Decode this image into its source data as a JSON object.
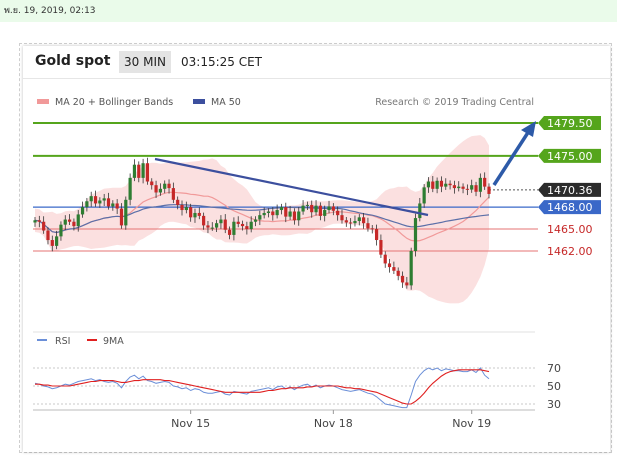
{
  "page": {
    "datetime": "พ.ย. 19, 2019, 02:13"
  },
  "header": {
    "title": "Gold spot",
    "timeframe": "30 MIN",
    "time": "03:15:25 CET"
  },
  "legend": {
    "bollinger": "MA 20 + Bollinger Bands",
    "ma50": "MA 50",
    "credit": "Research © 2019 Trading Central"
  },
  "rsi_legend": {
    "rsi": "RSI",
    "ma": "9MA"
  },
  "colors": {
    "candle_up": "#2e7d32",
    "candle_down": "#c62828",
    "band_fill": "#f9d3d3",
    "ma20": "#f19999",
    "ma50": "#5b6fa8",
    "resistance": "#55a51c",
    "support": "#e57373",
    "pivot": "#3a68c8",
    "trend": "#3c4f9e",
    "arrow": "#2d5aa8",
    "rsi": "#6b8fd8",
    "rsi_ma": "#e02020"
  },
  "chart_data": [
    {
      "type": "candlestick",
      "title": "Gold spot",
      "x_ticks": [
        "Nov 15",
        "Nov 18",
        "Nov 19"
      ],
      "price_levels": [
        {
          "label": "1479.50",
          "value": 1479.5,
          "kind": "resistance"
        },
        {
          "label": "1475.00",
          "value": 1475.0,
          "kind": "resistance"
        },
        {
          "label": "1470.36",
          "value": 1470.36,
          "kind": "current"
        },
        {
          "label": "1468.00",
          "value": 1468.0,
          "kind": "pivot"
        },
        {
          "label": "1465.00",
          "value": 1465.0,
          "kind": "support"
        },
        {
          "label": "1462.00",
          "value": 1462.0,
          "kind": "support"
        }
      ],
      "close": [
        1466.2,
        1466.0,
        1464.8,
        1463.5,
        1462.7,
        1464.0,
        1465.6,
        1466.3,
        1466.0,
        1465.4,
        1467.0,
        1468.0,
        1468.8,
        1469.5,
        1468.5,
        1468.9,
        1469.2,
        1468.1,
        1468.5,
        1467.8,
        1465.5,
        1469.0,
        1472.0,
        1473.8,
        1472.0,
        1474.0,
        1471.5,
        1471.0,
        1470.0,
        1470.5,
        1471.2,
        1470.6,
        1469.0,
        1468.3,
        1467.6,
        1468.0,
        1466.6,
        1467.2,
        1466.8,
        1465.5,
        1465.2,
        1465.2,
        1465.8,
        1466.3,
        1464.9,
        1464.2,
        1466.0,
        1465.7,
        1465.4,
        1465.0,
        1466.0,
        1466.3,
        1466.9,
        1467.2,
        1467.4,
        1466.9,
        1467.6,
        1468.0,
        1466.7,
        1467.4,
        1466.2,
        1467.4,
        1468.2,
        1468.3,
        1467.3,
        1468.2,
        1466.8,
        1467.6,
        1468.1,
        1467.5,
        1466.9,
        1466.2,
        1465.9,
        1465.8,
        1466.1,
        1466.6,
        1465.8,
        1465.1,
        1465.0,
        1463.5,
        1461.5,
        1460.3,
        1459.8,
        1459.3,
        1458.6,
        1457.7,
        1457.3,
        1462.0,
        1466.5,
        1468.5,
        1470.7,
        1471.5,
        1470.5,
        1471.6,
        1470.8,
        1471.2,
        1471.0,
        1470.6,
        1470.8,
        1470.5,
        1470.4,
        1471.0,
        1470.1,
        1472.0,
        1470.8,
        1469.8
      ],
      "price_range": [
        1455.2,
        1482.4
      ],
      "annotations": {
        "trendline": "descending resistance line",
        "arrow": "projection toward 1479.50"
      }
    },
    {
      "type": "line",
      "title": "RSI",
      "series": [
        {
          "name": "RSI"
        },
        {
          "name": "9MA"
        }
      ],
      "y_ticks": [
        70,
        50,
        30
      ],
      "ylim": [
        20,
        80
      ],
      "rsi": [
        53,
        52,
        50,
        49,
        47,
        48,
        50,
        52,
        51,
        53,
        55,
        56,
        57,
        58,
        56,
        57,
        55,
        54,
        55,
        53,
        48,
        55,
        60,
        62,
        58,
        61,
        56,
        55,
        53,
        54,
        55,
        54,
        50,
        49,
        47,
        48,
        45,
        47,
        46,
        43,
        42,
        42,
        43,
        44,
        41,
        40,
        44,
        43,
        42,
        41,
        44,
        45,
        46,
        47,
        48,
        46,
        49,
        50,
        47,
        49,
        46,
        49,
        51,
        52,
        49,
        51,
        48,
        50,
        51,
        50,
        48,
        46,
        45,
        44,
        45,
        46,
        44,
        42,
        41,
        38,
        34,
        30,
        29,
        28,
        27,
        26,
        26,
        40,
        55,
        62,
        67,
        70,
        68,
        70,
        67,
        69,
        68,
        67,
        67,
        66,
        66,
        68,
        65,
        70,
        62,
        58
      ],
      "rsi_ma": [
        52,
        52,
        51,
        51,
        50,
        50,
        50,
        50,
        50,
        51,
        52,
        53,
        54,
        55,
        55,
        56,
        56,
        56,
        56,
        55,
        54,
        54,
        55,
        56,
        56,
        57,
        57,
        57,
        57,
        57,
        56,
        56,
        55,
        54,
        53,
        52,
        51,
        50,
        49,
        48,
        47,
        46,
        45,
        44,
        43,
        43,
        43,
        43,
        43,
        43,
        43,
        43,
        43,
        44,
        45,
        45,
        46,
        47,
        47,
        48,
        48,
        48,
        48,
        49,
        49,
        50,
        50,
        50,
        50,
        50,
        50,
        49,
        48,
        48,
        47,
        47,
        46,
        45,
        44,
        43,
        41,
        39,
        37,
        35,
        33,
        31,
        30,
        30,
        33,
        37,
        42,
        48,
        53,
        57,
        61,
        64,
        66,
        67,
        68,
        68,
        68,
        68,
        68,
        68,
        67,
        66
      ]
    }
  ]
}
